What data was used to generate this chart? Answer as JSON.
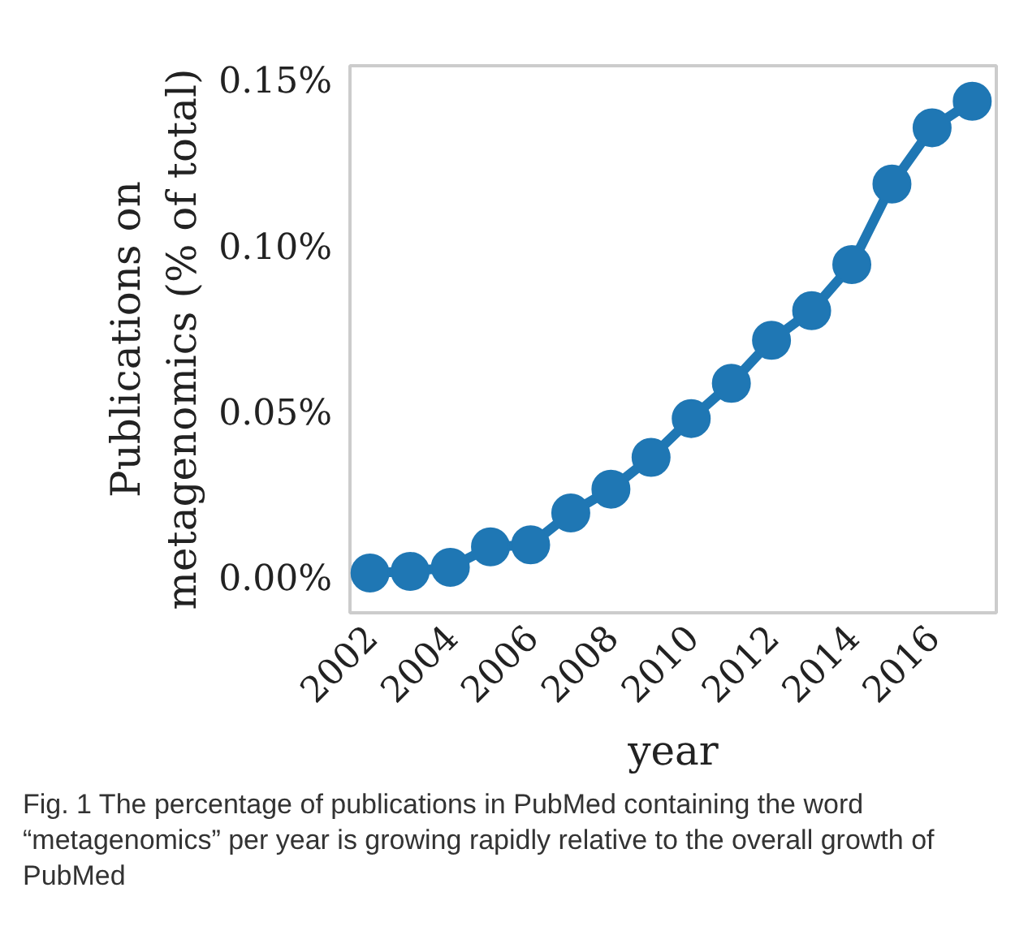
{
  "chart_data": {
    "type": "line",
    "xlabel": "year",
    "ylabel": "Publications on\nmetagenomics (% of total)",
    "x": [
      2002,
      2003,
      2004,
      2005,
      2006,
      2007,
      2008,
      2009,
      2010,
      2011,
      2012,
      2013,
      2014,
      2015,
      2016,
      2017
    ],
    "series": [
      {
        "color": "#1f77b4",
        "values": [
          0.002,
          0.0025,
          0.0037,
          0.0099,
          0.0105,
          0.0201,
          0.0273,
          0.0369,
          0.0486,
          0.0592,
          0.0722,
          0.0811,
          0.095,
          0.1193,
          0.1363,
          0.1443
        ]
      }
    ],
    "xlim": [
      2001.5,
      2017.6
    ],
    "xticks": [
      2002,
      2004,
      2006,
      2008,
      2010,
      2012,
      2014,
      2016
    ],
    "ylim": [
      -0.01,
      0.155
    ],
    "yticks": [
      {
        "value": 0,
        "label": "0.00%"
      },
      {
        "value": 0.05,
        "label": "0.05%"
      },
      {
        "value": 0.1,
        "label": "0.10%"
      },
      {
        "value": 0.15,
        "label": "0.15%"
      }
    ],
    "marker": "circle",
    "grid": false,
    "annotations": [
      "Fig. 1 The percentage of publications in PubMed containing the word “metagenomics” per year is growing rapidly relative to the overall growth of PubMed"
    ]
  }
}
